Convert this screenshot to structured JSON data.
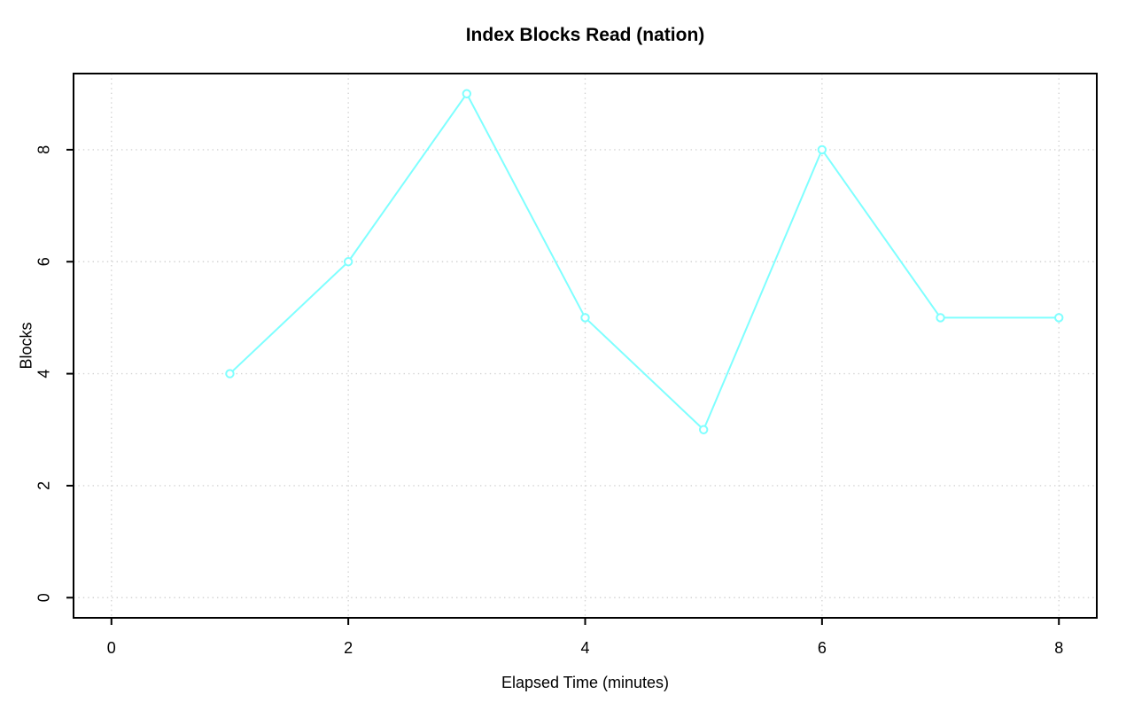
{
  "page": {
    "background": "#ffffff"
  },
  "chart_data": {
    "type": "line",
    "title": "Index Blocks Read (nation)",
    "xlabel": "Elapsed Time (minutes)",
    "ylabel": "Blocks",
    "x": [
      1,
      2,
      3,
      4,
      5,
      6,
      7,
      8
    ],
    "y": [
      4,
      6,
      9,
      5,
      3,
      8,
      5,
      5
    ],
    "xticks": [
      0,
      2,
      4,
      6,
      8
    ],
    "yticks": [
      0,
      2,
      4,
      6,
      8
    ],
    "xlim": [
      -0.32,
      8.32
    ],
    "ylim": [
      -0.36,
      9.36
    ],
    "grid": true,
    "grid_style": "dotted",
    "legend": "none",
    "marker": "open-circle",
    "colors": {
      "line": "#7fffff",
      "marker": "#7fffff",
      "grid": "#d3d3d3",
      "axis": "#000000",
      "text": "#000000"
    }
  }
}
